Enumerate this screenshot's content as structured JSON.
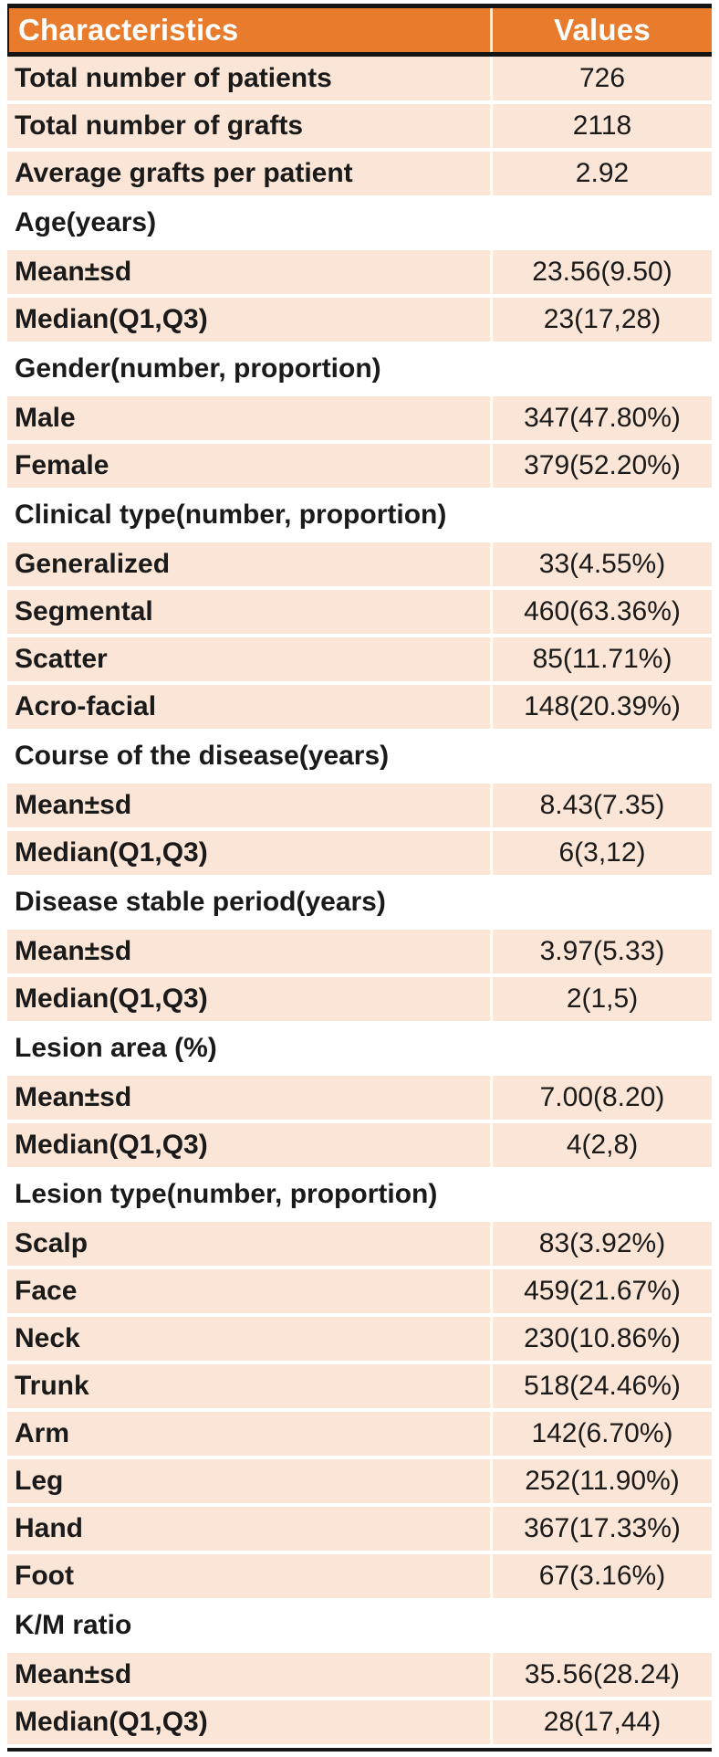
{
  "table": {
    "colors": {
      "header_bg": "#E87C2C",
      "row_bg": "#FBE5D6",
      "rule": "#141414",
      "header_text": "#FFFFFF",
      "body_text": "#1A1A1A"
    },
    "header": {
      "characteristics": "Characteristics",
      "values": "Values"
    },
    "rows": [
      {
        "type": "data",
        "label": "Total number of patients",
        "value": "726"
      },
      {
        "type": "data",
        "label": "Total number of grafts",
        "value": "2118"
      },
      {
        "type": "data",
        "label": "Average grafts per patient",
        "value": "2.92"
      },
      {
        "type": "section",
        "label": "Age(years)"
      },
      {
        "type": "data",
        "label": "Mean±sd",
        "value": "23.56(9.50)"
      },
      {
        "type": "data",
        "label": "Median(Q1,Q3)",
        "value": "23(17,28)"
      },
      {
        "type": "section",
        "label": "Gender(number, proportion)"
      },
      {
        "type": "data",
        "label": "Male",
        "value": "347(47.80%)"
      },
      {
        "type": "data",
        "label": "Female",
        "value": "379(52.20%)"
      },
      {
        "type": "section",
        "label": "Clinical type(number, proportion)"
      },
      {
        "type": "data",
        "label": "Generalized",
        "value": "33(4.55%)"
      },
      {
        "type": "data",
        "label": "Segmental",
        "value": "460(63.36%)"
      },
      {
        "type": "data",
        "label": "Scatter",
        "value": "85(11.71%)"
      },
      {
        "type": "data",
        "label": "Acro-facial",
        "value": "148(20.39%)"
      },
      {
        "type": "section",
        "label": "Course of the disease(years)"
      },
      {
        "type": "data",
        "label": "Mean±sd",
        "value": "8.43(7.35)"
      },
      {
        "type": "data",
        "label": "Median(Q1,Q3)",
        "value": "6(3,12)"
      },
      {
        "type": "section",
        "label": "Disease stable period(years)"
      },
      {
        "type": "data",
        "label": "Mean±sd",
        "value": "3.97(5.33)"
      },
      {
        "type": "data",
        "label": "Median(Q1,Q3)",
        "value": "2(1,5)"
      },
      {
        "type": "section",
        "label": "Lesion area (%)"
      },
      {
        "type": "data",
        "label": "Mean±sd",
        "value": "7.00(8.20)"
      },
      {
        "type": "data",
        "label": "Median(Q1,Q3)",
        "value": "4(2,8)"
      },
      {
        "type": "section",
        "label": "Lesion type(number, proportion)"
      },
      {
        "type": "data",
        "label": "Scalp",
        "value": "83(3.92%)"
      },
      {
        "type": "data",
        "label": "Face",
        "value": "459(21.67%)"
      },
      {
        "type": "data",
        "label": "Neck",
        "value": "230(10.86%)"
      },
      {
        "type": "data",
        "label": "Trunk",
        "value": "518(24.46%)"
      },
      {
        "type": "data",
        "label": "Arm",
        "value": "142(6.70%)"
      },
      {
        "type": "data",
        "label": "Leg",
        "value": "252(11.90%)"
      },
      {
        "type": "data",
        "label": "Hand",
        "value": "367(17.33%)"
      },
      {
        "type": "data",
        "label": "Foot",
        "value": "67(3.16%)"
      },
      {
        "type": "section",
        "label": "K/M ratio"
      },
      {
        "type": "data",
        "label": "Mean±sd",
        "value": "35.56(28.24)"
      },
      {
        "type": "data",
        "label": "Median(Q1,Q3)",
        "value": "28(17,44)"
      }
    ]
  }
}
